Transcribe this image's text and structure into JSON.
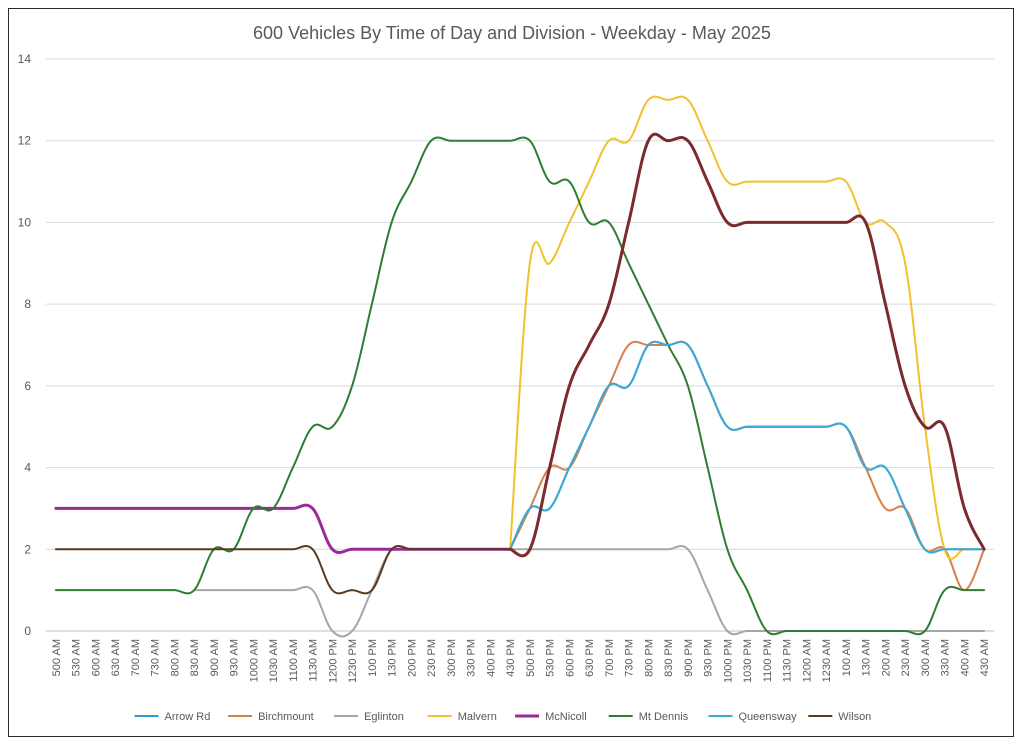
{
  "chart_data": {
    "type": "line",
    "title": "600 Vehicles By Time of Day and Division - Weekday - May 2025",
    "xlabel": "",
    "ylabel": "",
    "ylim": [
      0,
      14
    ],
    "yticks": [
      0,
      2,
      4,
      6,
      8,
      10,
      12,
      14
    ],
    "grid": true,
    "legend": "bottom",
    "x": [
      "500 AM",
      "530 AM",
      "600 AM",
      "630 AM",
      "700 AM",
      "730 AM",
      "800 AM",
      "830 AM",
      "900 AM",
      "930 AM",
      "1000 AM",
      "1030 AM",
      "1100 AM",
      "1130 AM",
      "1200 PM",
      "1230 PM",
      "100 PM",
      "130 PM",
      "200 PM",
      "230 PM",
      "300 PM",
      "330 PM",
      "400 PM",
      "430 PM",
      "500 PM",
      "530 PM",
      "600 PM",
      "630 PM",
      "700 PM",
      "730 PM",
      "800 PM",
      "830 PM",
      "900 PM",
      "930 PM",
      "1000 PM",
      "1030 PM",
      "1100 PM",
      "1130 PM",
      "1200 AM",
      "1230 AM",
      "100 AM",
      "130 AM",
      "200 AM",
      "230 AM",
      "300 AM",
      "330 AM",
      "400 AM",
      "430 AM"
    ],
    "series": [
      {
        "name": "Arrow Rd",
        "color": "#2e9fd6",
        "width": 2,
        "values": [
          null,
          null,
          null,
          null,
          null,
          null,
          null,
          null,
          null,
          null,
          null,
          null,
          null,
          null,
          null,
          null,
          null,
          null,
          null,
          null,
          null,
          null,
          null,
          2,
          3,
          3,
          4,
          5,
          6,
          6,
          7,
          7,
          7,
          6,
          5,
          5,
          5,
          5,
          5,
          5,
          5,
          4,
          4,
          3,
          2,
          2,
          2,
          2
        ]
      },
      {
        "name": "Birchmount",
        "color": "#d4814a",
        "width": 2,
        "values": [
          null,
          null,
          null,
          null,
          null,
          null,
          null,
          null,
          null,
          null,
          null,
          null,
          null,
          null,
          null,
          null,
          null,
          null,
          null,
          null,
          null,
          null,
          null,
          2,
          3,
          4,
          4,
          5,
          6,
          7,
          7,
          7,
          7,
          6,
          5,
          5,
          5,
          5,
          5,
          5,
          5,
          4,
          3,
          3,
          2,
          2,
          1,
          2
        ]
      },
      {
        "name": "Eglinton",
        "color": "#a6a6a6",
        "width": 2,
        "values": [
          null,
          null,
          null,
          null,
          null,
          null,
          null,
          1,
          1,
          1,
          1,
          1,
          1,
          1,
          0,
          0,
          1,
          2,
          2,
          2,
          2,
          2,
          2,
          2,
          2,
          2,
          2,
          2,
          2,
          2,
          2,
          2,
          2,
          1,
          0,
          0,
          0,
          0,
          0,
          0,
          0,
          0,
          0,
          0,
          0,
          0,
          0,
          0
        ]
      },
      {
        "name": "Malvern",
        "color": "#f2c12e",
        "width": 2,
        "values": [
          null,
          null,
          null,
          null,
          null,
          null,
          null,
          null,
          null,
          null,
          null,
          null,
          null,
          null,
          null,
          null,
          null,
          null,
          null,
          null,
          null,
          null,
          null,
          2,
          9,
          9,
          10,
          11,
          12,
          12,
          13,
          13,
          13,
          12,
          11,
          11,
          11,
          11,
          11,
          11,
          11,
          10,
          10,
          9,
          5,
          2,
          2,
          2
        ]
      },
      {
        "name": "McNicoll",
        "color": "#9b2a9a",
        "width": 3,
        "values": [
          3,
          3,
          3,
          3,
          3,
          3,
          3,
          3,
          3,
          3,
          3,
          3,
          3,
          3,
          2,
          2,
          2,
          2,
          2,
          2,
          2,
          2,
          2,
          2,
          null,
          null,
          null,
          null,
          null,
          null,
          null,
          null,
          null,
          null,
          null,
          null,
          null,
          null,
          null,
          null,
          null,
          null,
          null,
          null,
          null,
          null,
          null,
          null
        ]
      },
      {
        "name": "Mt Dennis",
        "color": "#2e7d32",
        "width": 2,
        "values": [
          1,
          1,
          1,
          1,
          1,
          1,
          1,
          1,
          2,
          2,
          3,
          3,
          4,
          5,
          5,
          6,
          8,
          10,
          11,
          12,
          12,
          12,
          12,
          12,
          12,
          11,
          11,
          10,
          10,
          9,
          8,
          7,
          6,
          4,
          2,
          1,
          0,
          0,
          0,
          0,
          0,
          0,
          0,
          0,
          0,
          1,
          1,
          1
        ]
      },
      {
        "name": "Queensway",
        "color": "#3aa9d8",
        "width": 2,
        "values": [
          null,
          null,
          null,
          null,
          null,
          null,
          null,
          null,
          null,
          null,
          null,
          null,
          null,
          null,
          null,
          null,
          null,
          null,
          null,
          null,
          null,
          null,
          null,
          2,
          3,
          3,
          4,
          5,
          6,
          6,
          7,
          7,
          7,
          6,
          5,
          5,
          5,
          5,
          5,
          5,
          5,
          4,
          4,
          3,
          2,
          2,
          2,
          2
        ]
      },
      {
        "name": "Wilson",
        "color": "#5b3a1e",
        "width": 2,
        "values": [
          2,
          2,
          2,
          2,
          2,
          2,
          2,
          2,
          2,
          2,
          2,
          2,
          2,
          2,
          1,
          1,
          1,
          2,
          2,
          2,
          2,
          2,
          2,
          2,
          null,
          null,
          null,
          null,
          null,
          null,
          null,
          null,
          null,
          null,
          null,
          null,
          null,
          null,
          null,
          null,
          null,
          null,
          null,
          null,
          null,
          null,
          null,
          null
        ]
      },
      {
        "name": "",
        "color": "#7b2a2e",
        "width": 3,
        "legend": false,
        "values": [
          null,
          null,
          null,
          null,
          null,
          null,
          null,
          null,
          null,
          null,
          null,
          null,
          null,
          null,
          null,
          null,
          null,
          null,
          null,
          null,
          null,
          null,
          null,
          2,
          2,
          4,
          6,
          7,
          8,
          10,
          12,
          12,
          12,
          11,
          10,
          10,
          10,
          10,
          10,
          10,
          10,
          10,
          8,
          6,
          5,
          5,
          3,
          2
        ]
      }
    ]
  }
}
